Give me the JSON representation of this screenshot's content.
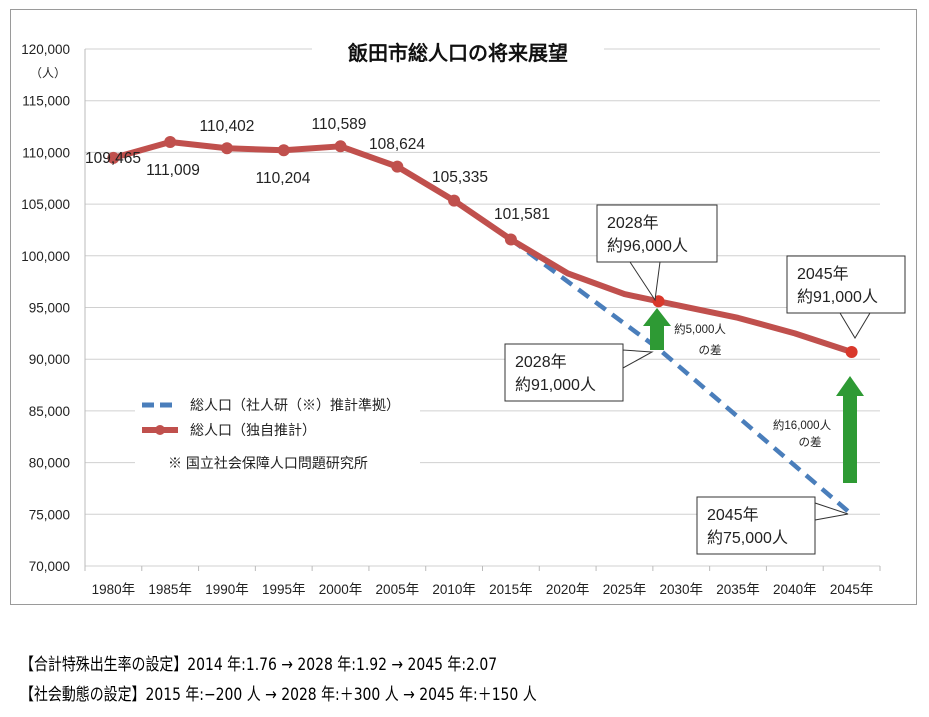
{
  "chart_data": {
    "type": "line",
    "title": "飯田市総人口の将来展望",
    "ylabel_unit": "（人）",
    "xlabel": "",
    "ylim": [
      70000,
      120000
    ],
    "yticks": [
      "70,000",
      "75,000",
      "80,000",
      "85,000",
      "90,000",
      "95,000",
      "100,000",
      "105,000",
      "110,000",
      "115,000",
      "120,000"
    ],
    "categories": [
      "1980年",
      "1985年",
      "1990年",
      "1995年",
      "2000年",
      "2005年",
      "2010年",
      "2015年",
      "2020年",
      "2025年",
      "2030年",
      "2035年",
      "2040年",
      "2045年"
    ],
    "grid": true,
    "legend_position": "inside-left",
    "series": [
      {
        "name": "総人口（社人研（※）推計準拠）",
        "style": "dashed",
        "color": "#4a7ebb",
        "x": [
          "2015年",
          "2028年",
          "2045年"
        ],
        "values": [
          101581,
          91000,
          75000
        ]
      },
      {
        "name": "総人口（独自推計）",
        "style": "solid-marker",
        "color": "#c0504d",
        "x": [
          "1980年",
          "1985年",
          "1990年",
          "1995年",
          "2000年",
          "2005年",
          "2010年",
          "2015年",
          "2020年",
          "2025年",
          "2028年",
          "2035年",
          "2040年",
          "2045年"
        ],
        "values": [
          109465,
          111009,
          110402,
          110204,
          110589,
          108624,
          105335,
          101581,
          98300,
          96300,
          95600,
          94000,
          92500,
          90700
        ]
      }
    ],
    "data_labels": [
      "109,465",
      "111,009",
      "110,402",
      "110,204",
      "110,589",
      "108,624",
      "105,335",
      "101,581"
    ],
    "legend_note": "※ 国立社会保障人口問題研究所",
    "callouts": [
      {
        "line1": "2028年",
        "line2": "約96,000人"
      },
      {
        "line1": "2045年",
        "line2": "約91,000人"
      },
      {
        "line1": "2028年",
        "line2": "約91,000人"
      },
      {
        "line1": "2045年",
        "line2": "約75,000人"
      }
    ],
    "diff_annotations": [
      {
        "line1": "約5,000人",
        "line2": "の差"
      },
      {
        "line1": "約16,000人",
        "line2": "の差"
      }
    ],
    "colors": {
      "solid": "#c0504d",
      "dashed": "#4a7ebb",
      "arrow": "#2e9a34",
      "grid": "#d0d0d0"
    }
  },
  "notes": [
    "【合計特殊出生率の設定】2014 年:1.76 → 2028 年:1.92 → 2045 年:2.07",
    "【社会動態の設定】2015 年:−200 人 → 2028 年:＋300 人 → 2045 年:＋150 人"
  ]
}
